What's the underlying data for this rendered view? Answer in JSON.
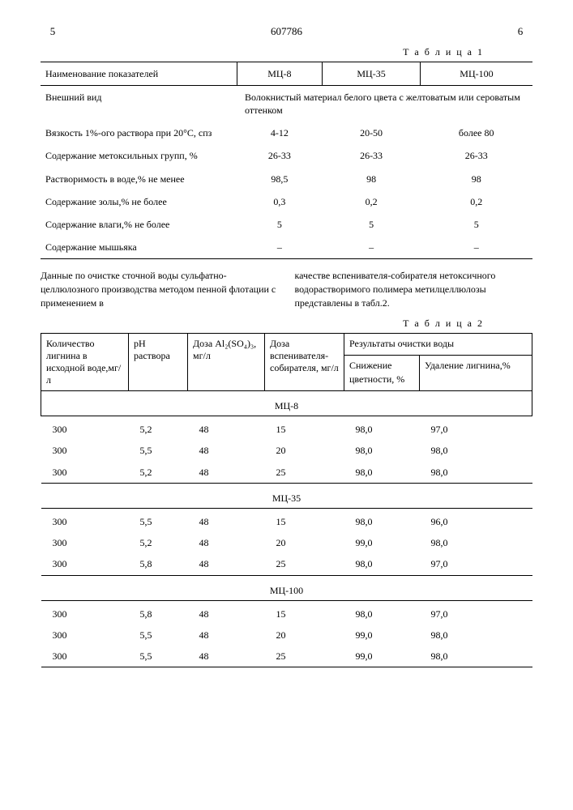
{
  "header": {
    "left_num": "5",
    "doc_num": "607786",
    "right_num": "6"
  },
  "table1": {
    "caption": "Т а б л и ц а  1",
    "header": [
      "Наименование показателей",
      "МЦ-8",
      "МЦ-35",
      "МЦ-100"
    ],
    "rows": [
      {
        "label": "Внешний вид",
        "span": "Волокнистый материал белого цвета с желтоватым или сероватым оттенком"
      },
      {
        "label": "Вязкость 1%-ого раствора при 20°С, спз",
        "v": [
          "4-12",
          "20-50",
          "более 80"
        ]
      },
      {
        "label": "Содержание метоксильных групп, %",
        "v": [
          "26-33",
          "26-33",
          "26-33"
        ]
      },
      {
        "label": "Растворимость в воде,% не менее",
        "v": [
          "98,5",
          "98",
          "98"
        ]
      },
      {
        "label": "Содержание золы,% не более",
        "v": [
          "0,3",
          "0,2",
          "0,2"
        ]
      },
      {
        "label": "Содержание влаги,% не более",
        "v": [
          "5",
          "5",
          "5"
        ]
      },
      {
        "label": "Содержание мышьяка",
        "v": [
          "–",
          "–",
          "–"
        ]
      }
    ]
  },
  "midtext": {
    "left": "Данные по очистке сточной воды сульфатно-целлюлозного производства методом пенной флотации с применением в",
    "right": "качестве вспенивателя-собирателя нетоксичного водорастворимого полимера метилцеллюлозы представлены в табл.2."
  },
  "table2": {
    "caption": "Т а б л и ц а  2",
    "head": {
      "c1": "Количество лигнина в исходной воде,мг/л",
      "c2": "pH раствора",
      "c3": "Доза Al₂(SO₄)₃, мг/л",
      "c4": "Доза вспенивателя-собирателя, мг/л",
      "c5": "Результаты очистки воды",
      "c5a": "Снижение цветности, %",
      "c5b": "Удаление лигнина,%"
    },
    "groups": [
      {
        "name": "МЦ-8",
        "rows": [
          [
            "300",
            "5,2",
            "48",
            "15",
            "98,0",
            "97,0"
          ],
          [
            "300",
            "5,5",
            "48",
            "20",
            "98,0",
            "98,0"
          ],
          [
            "300",
            "5,2",
            "48",
            "25",
            "98,0",
            "98,0"
          ]
        ]
      },
      {
        "name": "МЦ-35",
        "rows": [
          [
            "300",
            "5,5",
            "48",
            "15",
            "98,0",
            "96,0"
          ],
          [
            "300",
            "5,2",
            "48",
            "20",
            "99,0",
            "98,0"
          ],
          [
            "300",
            "5,8",
            "48",
            "25",
            "98,0",
            "97,0"
          ]
        ]
      },
      {
        "name": "МЦ-100",
        "rows": [
          [
            "300",
            "5,8",
            "48",
            "15",
            "98,0",
            "97,0"
          ],
          [
            "300",
            "5,5",
            "48",
            "20",
            "99,0",
            "98,0"
          ],
          [
            "300",
            "5,5",
            "48",
            "25",
            "99,0",
            "98,0"
          ]
        ]
      }
    ]
  }
}
